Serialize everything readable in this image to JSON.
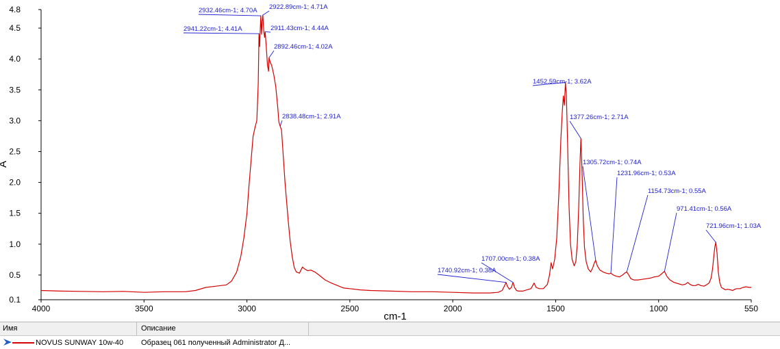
{
  "chart_data": {
    "type": "line",
    "xlabel": "cm-1",
    "ylabel": "A",
    "xlim": [
      4000,
      550
    ],
    "ylim": [
      0.1,
      4.8
    ],
    "x_reversed": true,
    "x_ticks": [
      4000,
      3500,
      3000,
      2500,
      2000,
      1500,
      1000,
      550
    ],
    "y_ticks": [
      0.1,
      0.5,
      1.0,
      1.5,
      2.0,
      2.5,
      3.0,
      3.5,
      4.0,
      4.5,
      4.8
    ],
    "y_tick_labels": [
      "0.1",
      "0.5",
      "1.0",
      "1.5",
      "2.0",
      "2.5",
      "3.0",
      "3.5",
      "4.0",
      "4.5",
      "4.8"
    ],
    "grid": false,
    "series": [
      {
        "name": "NOVUS SUNWAY 10w-40",
        "color": "#d40000",
        "points": [
          [
            4000,
            0.25
          ],
          [
            3900,
            0.24
          ],
          [
            3800,
            0.235
          ],
          [
            3700,
            0.23
          ],
          [
            3600,
            0.235
          ],
          [
            3500,
            0.22
          ],
          [
            3400,
            0.23
          ],
          [
            3300,
            0.23
          ],
          [
            3250,
            0.25
          ],
          [
            3200,
            0.3
          ],
          [
            3150,
            0.32
          ],
          [
            3100,
            0.34
          ],
          [
            3075,
            0.4
          ],
          [
            3050,
            0.55
          ],
          [
            3030,
            0.8
          ],
          [
            3015,
            1.1
          ],
          [
            3000,
            1.5
          ],
          [
            2990,
            1.95
          ],
          [
            2980,
            2.35
          ],
          [
            2970,
            2.75
          ],
          [
            2960,
            2.9
          ],
          [
            2952,
            3.0
          ],
          [
            2945,
            3.6
          ],
          [
            2941.22,
            4.41
          ],
          [
            2938,
            4.2
          ],
          [
            2935,
            4.5
          ],
          [
            2932.46,
            4.7
          ],
          [
            2929,
            4.4
          ],
          [
            2926,
            4.6
          ],
          [
            2922.89,
            4.71
          ],
          [
            2918,
            4.45
          ],
          [
            2914,
            4.35
          ],
          [
            2911.43,
            4.44
          ],
          [
            2906,
            4.2
          ],
          [
            2900,
            3.9
          ],
          [
            2895,
            3.8
          ],
          [
            2892.46,
            4.02
          ],
          [
            2887,
            3.95
          ],
          [
            2880,
            3.9
          ],
          [
            2870,
            3.75
          ],
          [
            2860,
            3.55
          ],
          [
            2850,
            3.2
          ],
          [
            2845,
            2.98
          ],
          [
            2838.48,
            2.91
          ],
          [
            2832,
            2.85
          ],
          [
            2825,
            2.5
          ],
          [
            2815,
            2.0
          ],
          [
            2800,
            1.4
          ],
          [
            2790,
            1.05
          ],
          [
            2780,
            0.8
          ],
          [
            2770,
            0.62
          ],
          [
            2760,
            0.55
          ],
          [
            2745,
            0.53
          ],
          [
            2730,
            0.63
          ],
          [
            2720,
            0.6
          ],
          [
            2705,
            0.57
          ],
          [
            2690,
            0.58
          ],
          [
            2670,
            0.55
          ],
          [
            2650,
            0.5
          ],
          [
            2620,
            0.42
          ],
          [
            2590,
            0.37
          ],
          [
            2560,
            0.33
          ],
          [
            2530,
            0.29
          ],
          [
            2500,
            0.28
          ],
          [
            2450,
            0.26
          ],
          [
            2400,
            0.25
          ],
          [
            2300,
            0.24
          ],
          [
            2200,
            0.23
          ],
          [
            2100,
            0.23
          ],
          [
            2000,
            0.22
          ],
          [
            1900,
            0.21
          ],
          [
            1820,
            0.21
          ],
          [
            1780,
            0.22
          ],
          [
            1760,
            0.25
          ],
          [
            1748,
            0.33
          ],
          [
            1740.92,
            0.38
          ],
          [
            1735,
            0.32
          ],
          [
            1725,
            0.27
          ],
          [
            1715,
            0.3
          ],
          [
            1707.0,
            0.38
          ],
          [
            1700,
            0.3
          ],
          [
            1690,
            0.25
          ],
          [
            1680,
            0.24
          ],
          [
            1660,
            0.24
          ],
          [
            1640,
            0.26
          ],
          [
            1620,
            0.28
          ],
          [
            1605,
            0.37
          ],
          [
            1595,
            0.3
          ],
          [
            1580,
            0.28
          ],
          [
            1560,
            0.28
          ],
          [
            1540,
            0.35
          ],
          [
            1530,
            0.5
          ],
          [
            1522,
            0.7
          ],
          [
            1515,
            0.6
          ],
          [
            1505,
            0.75
          ],
          [
            1495,
            1.1
          ],
          [
            1485,
            1.8
          ],
          [
            1475,
            2.7
          ],
          [
            1468,
            3.15
          ],
          [
            1463,
            3.4
          ],
          [
            1458,
            3.25
          ],
          [
            1452.59,
            3.62
          ],
          [
            1448,
            3.4
          ],
          [
            1442,
            2.6
          ],
          [
            1435,
            1.6
          ],
          [
            1428,
            1.0
          ],
          [
            1420,
            0.75
          ],
          [
            1410,
            0.65
          ],
          [
            1402,
            0.72
          ],
          [
            1395,
            1.0
          ],
          [
            1388,
            1.6
          ],
          [
            1382,
            2.3
          ],
          [
            1377.26,
            2.71
          ],
          [
            1372,
            2.2
          ],
          [
            1366,
            1.4
          ],
          [
            1360,
            0.95
          ],
          [
            1352,
            0.72
          ],
          [
            1342,
            0.6
          ],
          [
            1330,
            0.55
          ],
          [
            1320,
            0.62
          ],
          [
            1312,
            0.7
          ],
          [
            1305.72,
            0.74
          ],
          [
            1298,
            0.65
          ],
          [
            1285,
            0.58
          ],
          [
            1270,
            0.55
          ],
          [
            1255,
            0.53
          ],
          [
            1240,
            0.52
          ],
          [
            1231.96,
            0.53
          ],
          [
            1220,
            0.5
          ],
          [
            1205,
            0.48
          ],
          [
            1190,
            0.47
          ],
          [
            1175,
            0.5
          ],
          [
            1165,
            0.53
          ],
          [
            1154.73,
            0.55
          ],
          [
            1145,
            0.5
          ],
          [
            1135,
            0.44
          ],
          [
            1120,
            0.42
          ],
          [
            1100,
            0.42
          ],
          [
            1080,
            0.43
          ],
          [
            1060,
            0.44
          ],
          [
            1040,
            0.45
          ],
          [
            1020,
            0.47
          ],
          [
            1000,
            0.48
          ],
          [
            985,
            0.52
          ],
          [
            971.41,
            0.56
          ],
          [
            960,
            0.48
          ],
          [
            945,
            0.42
          ],
          [
            925,
            0.38
          ],
          [
            905,
            0.36
          ],
          [
            885,
            0.34
          ],
          [
            870,
            0.35
          ],
          [
            858,
            0.38
          ],
          [
            848,
            0.35
          ],
          [
            835,
            0.33
          ],
          [
            820,
            0.33
          ],
          [
            808,
            0.35
          ],
          [
            795,
            0.33
          ],
          [
            780,
            0.32
          ],
          [
            768,
            0.34
          ],
          [
            755,
            0.37
          ],
          [
            745,
            0.45
          ],
          [
            738,
            0.6
          ],
          [
            732,
            0.8
          ],
          [
            727,
            0.95
          ],
          [
            721.96,
            1.03
          ],
          [
            716,
            0.85
          ],
          [
            710,
            0.55
          ],
          [
            703,
            0.38
          ],
          [
            695,
            0.3
          ],
          [
            685,
            0.28
          ],
          [
            675,
            0.26
          ],
          [
            665,
            0.27
          ],
          [
            650,
            0.26
          ],
          [
            640,
            0.25
          ],
          [
            630,
            0.27
          ],
          [
            620,
            0.28
          ],
          [
            605,
            0.28
          ],
          [
            590,
            0.3
          ],
          [
            575,
            0.31
          ],
          [
            560,
            0.3
          ],
          [
            550,
            0.3
          ]
        ]
      }
    ],
    "annotations": [
      {
        "label": "2932.46cm-1; 4.70A",
        "x": 2932.46,
        "y": 4.7
      },
      {
        "label": "2922.89cm-1; 4.71A",
        "x": 2922.89,
        "y": 4.71
      },
      {
        "label": "2941.22cm-1; 4.41A",
        "x": 2941.22,
        "y": 4.41
      },
      {
        "label": "2911.43cm-1; 4.44A",
        "x": 2911.43,
        "y": 4.44
      },
      {
        "label": "2892.46cm-1; 4.02A",
        "x": 2892.46,
        "y": 4.02
      },
      {
        "label": "2838.48cm-1; 2.91A",
        "x": 2838.48,
        "y": 2.91
      },
      {
        "label": "1452.59cm-1; 3.62A",
        "x": 1452.59,
        "y": 3.62
      },
      {
        "label": "1377.26cm-1; 2.71A",
        "x": 1377.26,
        "y": 2.71
      },
      {
        "label": "1305.72cm-1; 0.74A",
        "x": 1305.72,
        "y": 0.74
      },
      {
        "label": "1231.96cm-1; 0.53A",
        "x": 1231.96,
        "y": 0.53
      },
      {
        "label": "1154.73cm-1; 0.55A",
        "x": 1154.73,
        "y": 0.55
      },
      {
        "label": "971.41cm-1; 0.56A",
        "x": 971.41,
        "y": 0.56
      },
      {
        "label": "721.96cm-1; 1.03A",
        "x": 721.96,
        "y": 1.03
      },
      {
        "label": "1707.00cm-1; 0.38A",
        "x": 1707.0,
        "y": 0.38
      },
      {
        "label": "1740.92cm-1; 0.38A",
        "x": 1740.92,
        "y": 0.38
      }
    ],
    "annotation_color": "#2020d0"
  },
  "legend_table": {
    "columns": [
      "Имя",
      "Описание"
    ],
    "rows": [
      {
        "name": "NOVUS SUNWAY 10w-40",
        "description": "Образец 061 полученный Administrator Д...",
        "color": "#d40000"
      }
    ]
  }
}
